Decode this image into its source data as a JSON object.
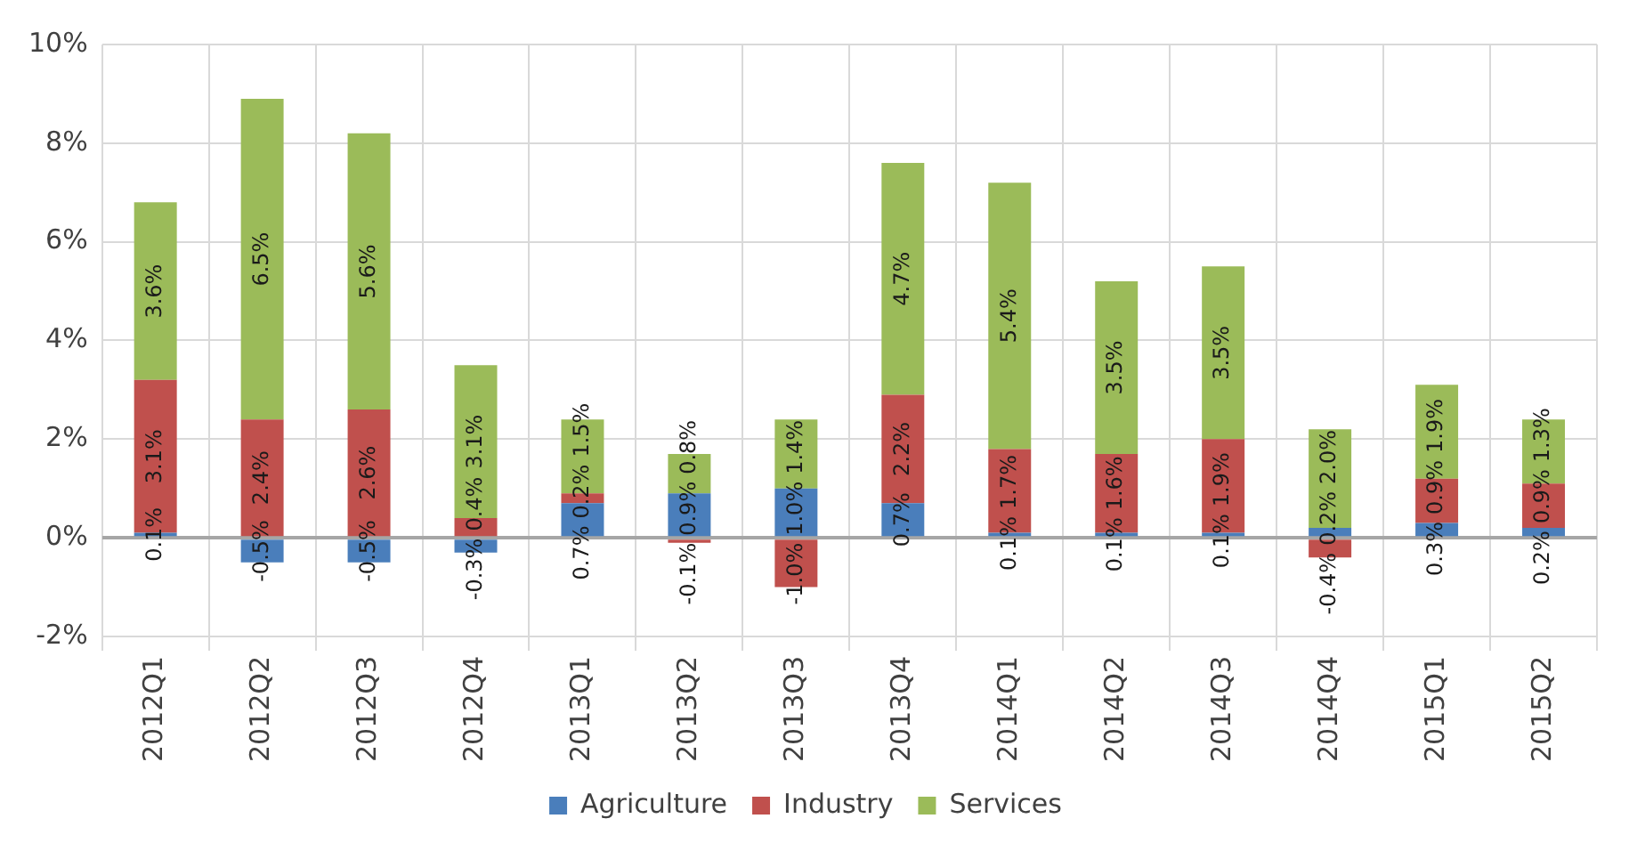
{
  "chart_data": {
    "type": "bar",
    "stacked": true,
    "grid": true,
    "legend": "bottom",
    "categories": [
      "2012Q1",
      "2012Q2",
      "2012Q3",
      "2012Q4",
      "2013Q1",
      "2013Q2",
      "2013Q3",
      "2013Q4",
      "2014Q1",
      "2014Q2",
      "2014Q3",
      "2014Q4",
      "2015Q1",
      "2015Q2"
    ],
    "series": [
      {
        "name": "Agriculture",
        "color": "#4a7ebb",
        "values": [
          0.1,
          -0.5,
          -0.5,
          -0.3,
          0.7,
          0.9,
          1.0,
          0.7,
          0.1,
          0.1,
          0.1,
          0.2,
          0.3,
          0.2
        ],
        "value_labels": [
          "0.1%",
          "-0.5%",
          "-0.5%",
          "-0.3%",
          "0.7%",
          "0.9%",
          "1.0%",
          "0.7%",
          "0.1%",
          "0.1%",
          "0.1%",
          "0.2%",
          "0.3%",
          "0.2%"
        ]
      },
      {
        "name": "Industry",
        "color": "#c0504d",
        "values": [
          3.1,
          2.4,
          2.6,
          0.4,
          0.2,
          -0.1,
          -1.0,
          2.2,
          1.7,
          1.6,
          1.9,
          -0.4,
          0.9,
          0.9
        ],
        "value_labels": [
          "3.1%",
          "2.4%",
          "2.6%",
          "0.4%",
          "0.2%",
          "-0.1%",
          "-1.0%",
          "2.2%",
          "1.7%",
          "1.6%",
          "1.9%",
          "-0.4%",
          "0.9%",
          "0.9%"
        ]
      },
      {
        "name": "Services",
        "color": "#9bbb59",
        "values": [
          3.6,
          6.5,
          5.6,
          3.1,
          1.5,
          0.8,
          1.4,
          4.7,
          5.4,
          3.5,
          3.5,
          2.0,
          1.9,
          1.3
        ],
        "value_labels": [
          "3.6%",
          "6.5%",
          "5.6%",
          "3.1%",
          "1.5%",
          "0.8%",
          "1.4%",
          "4.7%",
          "5.4%",
          "3.5%",
          "3.5%",
          "2.0%",
          "1.9%",
          "1.3%"
        ]
      }
    ],
    "ylim": [
      -2,
      10
    ],
    "yticks": [
      {
        "value": -2,
        "label": "-2%"
      },
      {
        "value": 0,
        "label": "0%"
      },
      {
        "value": 2,
        "label": "2%"
      },
      {
        "value": 4,
        "label": "4%"
      },
      {
        "value": 6,
        "label": "6%"
      },
      {
        "value": 8,
        "label": "8%"
      },
      {
        "value": 10,
        "label": "10%"
      }
    ]
  }
}
